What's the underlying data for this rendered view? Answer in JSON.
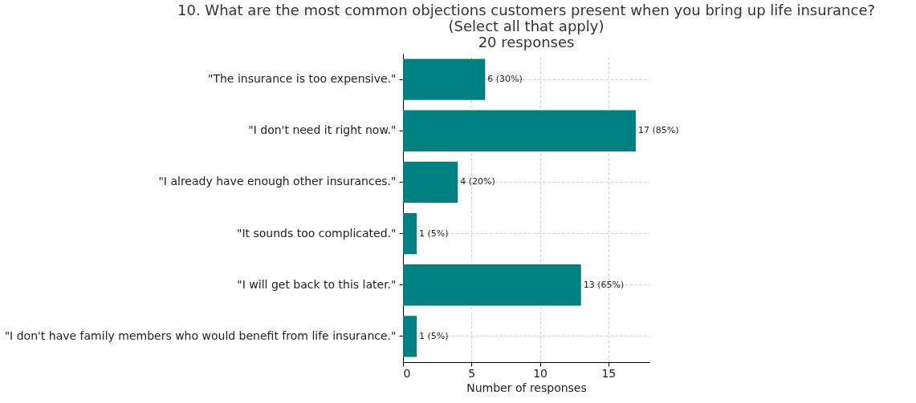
{
  "chart_data": {
    "type": "bar",
    "orientation": "horizontal",
    "title": [
      "10. What are the most common objections customers present when you bring up life insurance?",
      "(Select all that apply)",
      "20 responses"
    ],
    "xlabel": "Number of responses",
    "categories": [
      "\"The insurance is too expensive.\"",
      "\"I don't need it right now.\"",
      "\"I already have enough other insurances.\"",
      "\"It sounds too complicated.\"",
      "\"I will get back to this later.\"",
      "\"I don't have family members who would benefit from life insurance.\""
    ],
    "values": [
      6,
      17,
      4,
      1,
      13,
      1
    ],
    "value_labels": [
      "6 (30%)",
      "17 (85%)",
      "4 (20%)",
      "1 (5%)",
      "13 (65%)",
      "1 (5%)"
    ],
    "color": "#008080",
    "xlim": [
      0,
      18
    ],
    "xticks": [
      0,
      5,
      10,
      15
    ],
    "grid": true
  }
}
